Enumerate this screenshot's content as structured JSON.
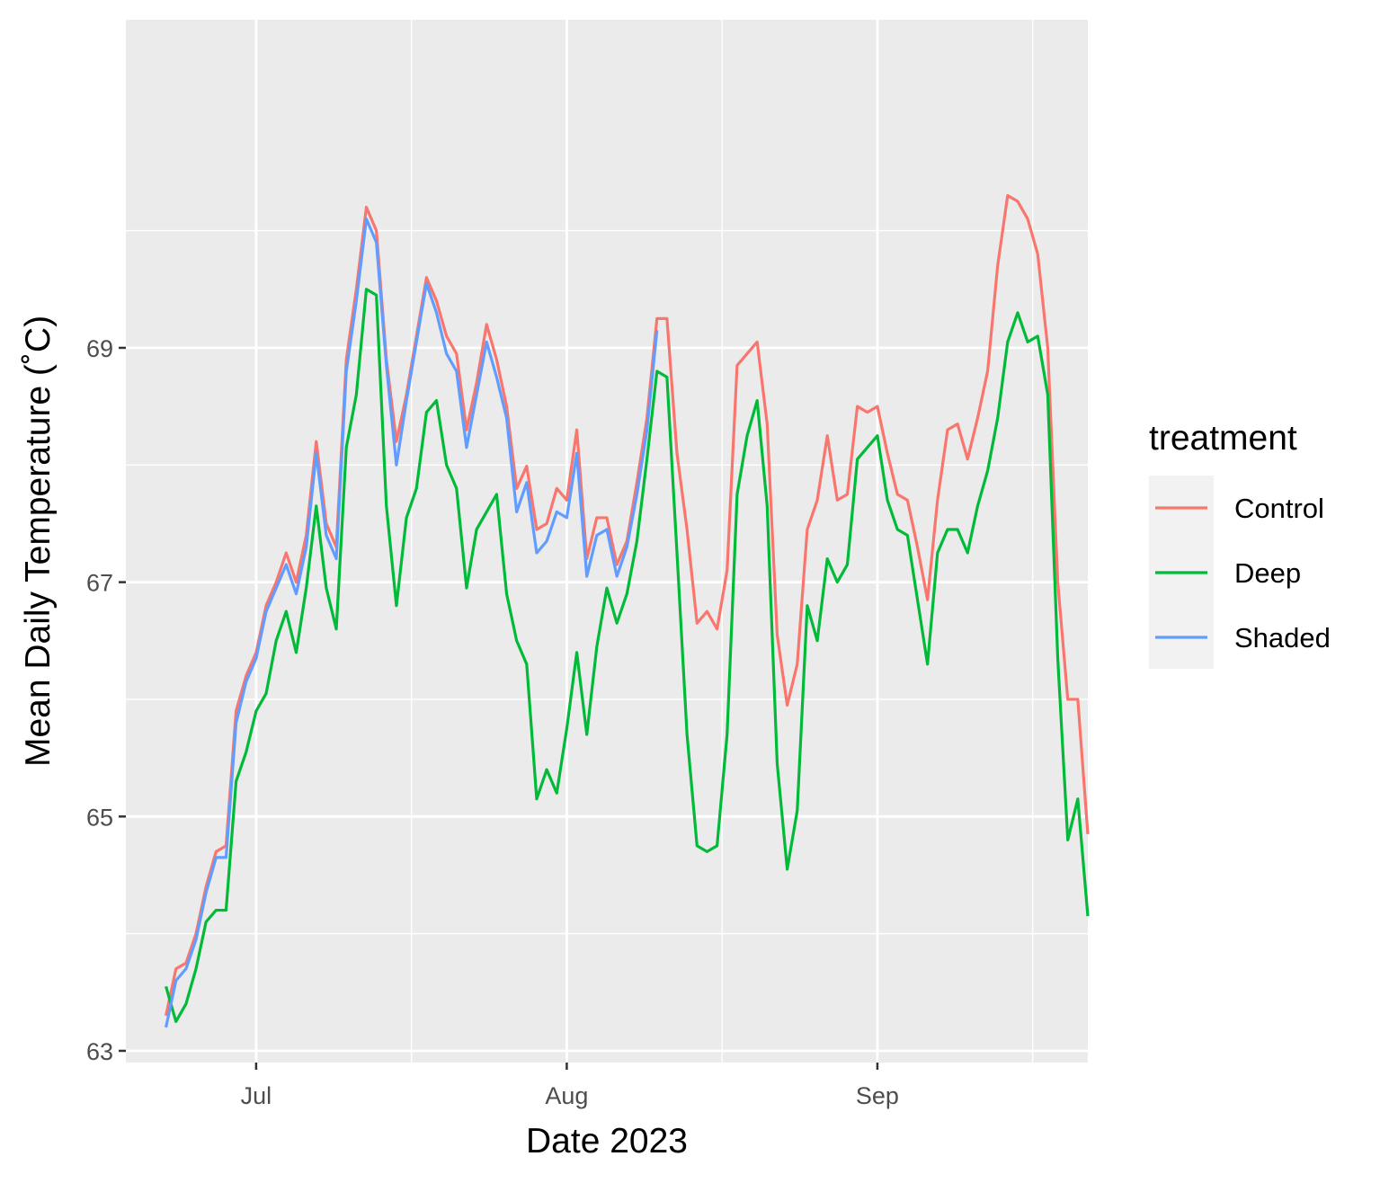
{
  "chart_data": {
    "type": "line",
    "xlabel": "Date 2023",
    "ylabel": "Mean Daily Temperature (˚C)",
    "x_start_date": "2023-06-22",
    "x_tick_dates": [
      "2023-07-01",
      "2023-08-01",
      "2023-09-01"
    ],
    "xlim": [
      "2023-06-18",
      "2023-09-22"
    ],
    "x_tick_labels": [
      "Jul",
      "Aug",
      "Sep"
    ],
    "y_ticks": [
      63,
      65,
      67,
      69
    ],
    "y_tick_labels": [
      "63",
      "65",
      "67",
      "69"
    ],
    "ylim": [
      62.9,
      71.8
    ],
    "grid": true,
    "legend": {
      "title": "treatment",
      "placement": "right"
    },
    "series": [
      {
        "name": "Control",
        "color": "#F8766D",
        "values": [
          63.3,
          63.7,
          63.75,
          64.0,
          64.4,
          64.7,
          64.75,
          65.9,
          66.2,
          66.4,
          66.8,
          67.0,
          67.25,
          67.0,
          67.4,
          68.2,
          67.5,
          67.3,
          68.9,
          69.5,
          70.2,
          70.0,
          68.9,
          68.2,
          68.6,
          69.1,
          69.6,
          69.4,
          69.1,
          68.95,
          68.3,
          68.7,
          69.2,
          68.9,
          68.5,
          67.8,
          67.99,
          67.45,
          67.5,
          67.8,
          67.7,
          68.3,
          67.2,
          67.55,
          67.55,
          67.15,
          67.35,
          67.85,
          68.4,
          69.25,
          69.25,
          68.1,
          67.45,
          66.65,
          66.75,
          66.6,
          67.1,
          68.85,
          68.95,
          69.05,
          68.35,
          66.55,
          65.95,
          66.3,
          67.45,
          67.7,
          68.25,
          67.7,
          67.75,
          68.5,
          68.45,
          68.5,
          68.1,
          67.75,
          67.7,
          67.3,
          66.85,
          67.7,
          68.3,
          68.35,
          68.05,
          68.4,
          68.8,
          69.7,
          70.3,
          70.25,
          70.1,
          69.8,
          69.0,
          67.0,
          66.0,
          66.0,
          64.85
        ]
      },
      {
        "name": "Deep",
        "color": "#00BA38",
        "values": [
          63.55,
          63.25,
          63.4,
          63.7,
          64.1,
          64.2,
          64.2,
          65.3,
          65.55,
          65.9,
          66.05,
          66.5,
          66.75,
          66.4,
          66.95,
          67.65,
          66.95,
          66.6,
          68.15,
          68.6,
          69.5,
          69.45,
          67.65,
          66.8,
          67.55,
          67.8,
          68.45,
          68.55,
          68.0,
          67.8,
          66.95,
          67.45,
          67.6,
          67.75,
          66.9,
          66.5,
          66.3,
          65.15,
          65.4,
          65.2,
          65.75,
          66.4,
          65.7,
          66.45,
          66.95,
          66.65,
          66.9,
          67.35,
          68.05,
          68.8,
          68.75,
          67.25,
          65.7,
          64.75,
          64.7,
          64.75,
          65.7,
          67.75,
          68.25,
          68.55,
          67.65,
          65.45,
          64.55,
          65.05,
          66.8,
          66.5,
          67.2,
          67.0,
          67.15,
          68.05,
          68.15,
          68.25,
          67.7,
          67.45,
          67.4,
          66.85,
          66.3,
          67.25,
          67.45,
          67.45,
          67.25,
          67.65,
          67.95,
          68.4,
          69.05,
          69.3,
          69.05,
          69.1,
          68.6,
          66.35,
          64.8,
          65.15,
          64.15
        ]
      },
      {
        "name": "Shaded",
        "color": "#619CFF",
        "values": [
          63.2,
          63.6,
          63.7,
          63.95,
          64.35,
          64.65,
          64.65,
          65.8,
          66.15,
          66.35,
          66.75,
          66.95,
          67.15,
          66.9,
          67.3,
          68.1,
          67.4,
          67.2,
          68.8,
          69.4,
          70.1,
          69.9,
          68.85,
          68.0,
          68.55,
          69.05,
          69.55,
          69.3,
          68.95,
          68.8,
          68.15,
          68.6,
          69.05,
          68.75,
          68.4,
          67.6,
          67.85,
          67.25,
          67.35,
          67.6,
          67.55,
          68.1,
          67.05,
          67.4,
          67.45,
          67.05,
          67.3,
          67.75,
          68.3,
          69.15
        ]
      }
    ]
  }
}
